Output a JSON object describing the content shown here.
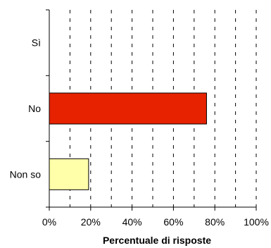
{
  "chart_data": {
    "type": "bar",
    "orientation": "horizontal",
    "categories": [
      "Sì",
      "No",
      "Non so"
    ],
    "values": [
      0,
      76,
      19
    ],
    "bar_colors": [
      "#FFFFAA",
      "#E62200",
      "#FFFFAA"
    ],
    "xlabel": "Percentuale di risposte",
    "ylabel": "",
    "xlim": [
      0,
      100
    ],
    "xticks": [
      "0%",
      "20%",
      "40%",
      "60%",
      "80%",
      "100%"
    ],
    "grid": "vertical dashed",
    "legend": "none"
  }
}
